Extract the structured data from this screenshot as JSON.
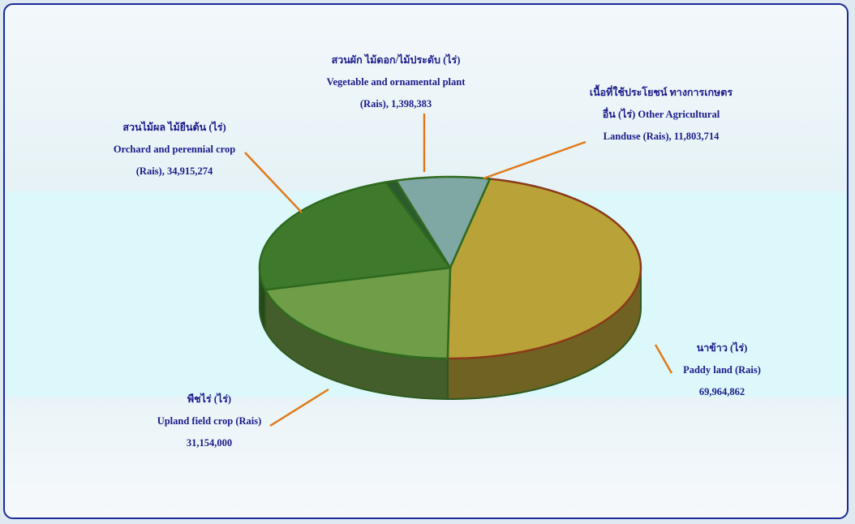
{
  "chart_data": {
    "type": "pie3d",
    "categories": [
      "นาข้าว (ไร่)\nPaddy land (Rais)",
      "พืชไร่ (ไร่)\nUpland field crop (Rais)",
      "สวนไม้ผล ไม้ยืนต้น (ไร่)\nOrchard and perennial crop\n(Rais),",
      "สวนผัก ไม้ดอก/ไม้ประดับ (ไร่)\nVegetable and ornamental plant\n(Rais),",
      "เนื้อที่ใช้ประโยชน์ ทางการเกษตร\nอื่น (ไร่) Other Agricultural\nLanduse (Rais),"
    ],
    "values": [
      69964862,
      31154000,
      34915274,
      1398383,
      11803714
    ],
    "value_labels": [
      "69,964,862",
      "31,154,000",
      "34,915,274",
      "1,398,383",
      "11,803,714"
    ],
    "colors": [
      "#b9a338",
      "#6f9d48",
      "#3f7a2c",
      "#2c5a2e",
      "#7fa7a4"
    ]
  }
}
